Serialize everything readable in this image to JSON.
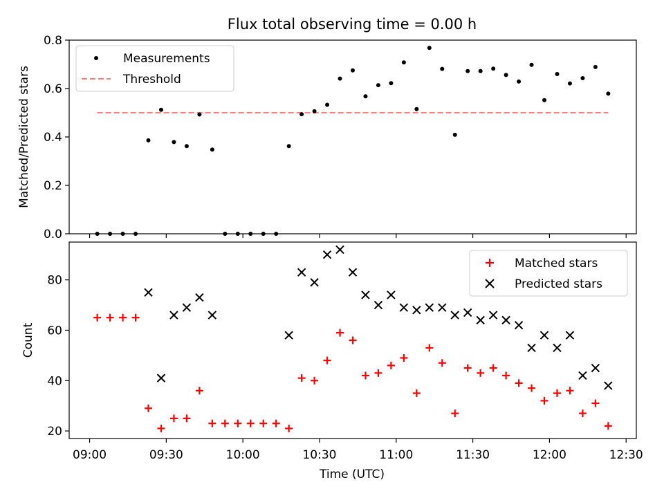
{
  "chart_data": [
    {
      "type": "scatter",
      "title": "Flux total observing time = 0.00 h",
      "xlabel": "",
      "ylabel": "Matched/Predicted stars",
      "ylim": [
        0,
        0.8
      ],
      "yticks": [
        "0.0",
        "0.2",
        "0.4",
        "0.6",
        "0.8"
      ],
      "x_unit": "minutes after 09:00 UTC",
      "legend_position": "top-left",
      "series": [
        {
          "name": "Measurements",
          "color": "#000000",
          "marker": "dot",
          "x": [
            3,
            8,
            13,
            18,
            23,
            28,
            33,
            38,
            43,
            48,
            53,
            58,
            63,
            68,
            73,
            78,
            83,
            88,
            93,
            98,
            103,
            108,
            113,
            118,
            123,
            128,
            133,
            138,
            143,
            148,
            153,
            158,
            163,
            168,
            173,
            178,
            183,
            188,
            193,
            198,
            203
          ],
          "y": [
            0,
            0,
            0,
            0,
            0.386,
            0.512,
            0.379,
            0.362,
            0.493,
            0.348,
            0,
            0,
            0,
            0,
            0,
            0.362,
            0.494,
            0.506,
            0.533,
            0.641,
            0.675,
            0.568,
            0.614,
            0.622,
            0.708,
            0.515,
            0.768,
            0.681,
            0.409,
            0.672,
            0.672,
            0.682,
            0.656,
            0.629,
            0.698,
            0.552,
            0.66,
            0.621,
            0.643,
            0.689,
            0.579
          ]
        },
        {
          "name": "Threshold",
          "color": "#ff7f7f",
          "style": "dashed",
          "x": [
            3,
            203
          ],
          "y": [
            0.5,
            0.5
          ]
        }
      ]
    },
    {
      "type": "scatter",
      "title": "",
      "xlabel": "Time (UTC)",
      "ylabel": "Count",
      "ylim": [
        17,
        95
      ],
      "yticks": [
        "20",
        "40",
        "60",
        "80"
      ],
      "xlim": [
        -8,
        214
      ],
      "xticks": [
        {
          "value": 0,
          "label": "09:00"
        },
        {
          "value": 30,
          "label": "09:30"
        },
        {
          "value": 60,
          "label": "10:00"
        },
        {
          "value": 90,
          "label": "10:30"
        },
        {
          "value": 120,
          "label": "11:00"
        },
        {
          "value": 150,
          "label": "11:30"
        },
        {
          "value": 180,
          "label": "12:00"
        },
        {
          "value": 210,
          "label": "12:30"
        }
      ],
      "legend_position": "top-right",
      "series": [
        {
          "name": "Matched stars",
          "color": "#ff0000",
          "marker": "plus",
          "x": [
            3,
            8,
            13,
            18,
            23,
            28,
            33,
            38,
            43,
            48,
            53,
            58,
            63,
            68,
            73,
            78,
            83,
            88,
            93,
            98,
            103,
            108,
            113,
            118,
            123,
            128,
            133,
            138,
            143,
            148,
            153,
            158,
            163,
            168,
            173,
            178,
            183,
            188,
            193,
            198,
            203
          ],
          "y": [
            65,
            65,
            65,
            65,
            29,
            21,
            25,
            25,
            36,
            23,
            23,
            23,
            23,
            23,
            23,
            21,
            41,
            40,
            48,
            59,
            56,
            42,
            43,
            46,
            49,
            35,
            53,
            47,
            27,
            45,
            43,
            45,
            42,
            39,
            37,
            32,
            35,
            36,
            27,
            31,
            22
          ]
        },
        {
          "name": "Predicted stars",
          "color": "#000000",
          "marker": "x",
          "x": [
            23,
            28,
            33,
            38,
            43,
            48,
            78,
            83,
            88,
            93,
            98,
            103,
            108,
            113,
            118,
            123,
            128,
            133,
            138,
            143,
            148,
            153,
            158,
            163,
            168,
            173,
            178,
            183,
            188,
            193,
            198,
            203
          ],
          "y": [
            75,
            41,
            66,
            69,
            73,
            66,
            58,
            83,
            79,
            90,
            92,
            83,
            74,
            70,
            74,
            69,
            68,
            69,
            69,
            66,
            67,
            64,
            66,
            64,
            62,
            53,
            58,
            53,
            58,
            42,
            45,
            38
          ]
        }
      ]
    }
  ]
}
